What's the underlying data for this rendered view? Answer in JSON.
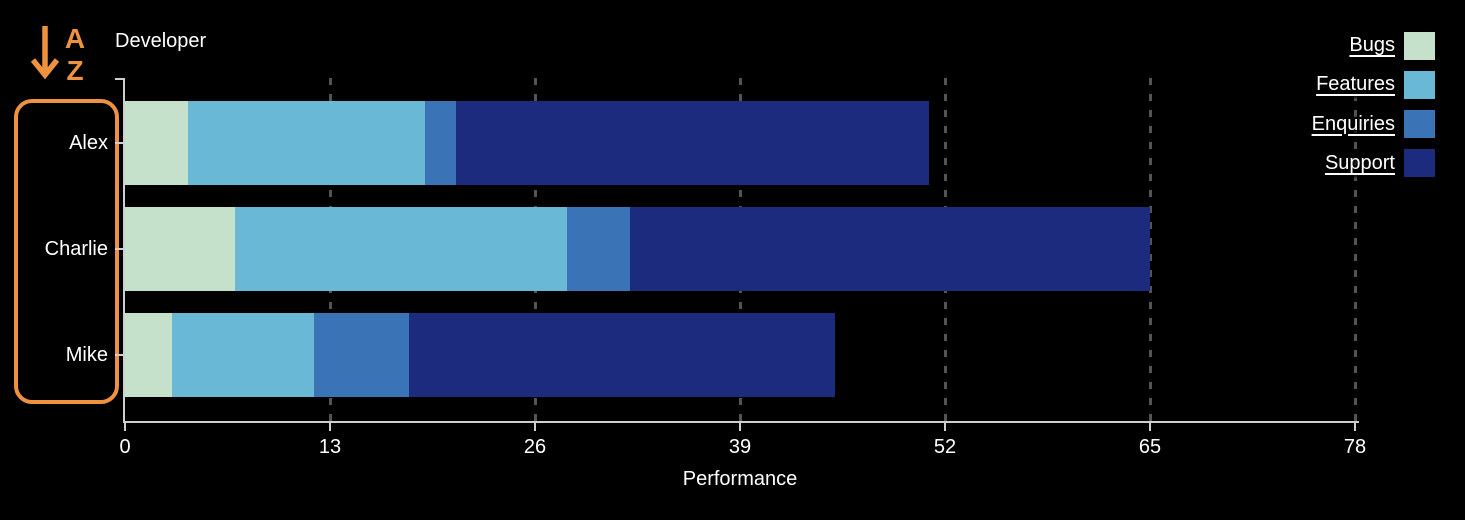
{
  "axes": {
    "y_title": "Developer",
    "x_title": "Performance"
  },
  "sort_control": {
    "top_letter": "A",
    "bottom_letter": "Z",
    "direction": "ascending"
  },
  "legend": {
    "position": "top-right",
    "items": [
      {
        "label": "Bugs",
        "color": "#c5e1cb"
      },
      {
        "label": "Features",
        "color": "#69b8d6"
      },
      {
        "label": "Enquiries",
        "color": "#3a74b6"
      },
      {
        "label": "Support",
        "color": "#1d2b7e"
      }
    ]
  },
  "chart_data": {
    "type": "bar",
    "orientation": "horizontal",
    "stacked": true,
    "title": "",
    "xlabel": "Performance",
    "ylabel": "Developer",
    "categories": [
      "Alex",
      "Charlie",
      "Mike"
    ],
    "series": [
      {
        "name": "Bugs",
        "color": "#c5e1cb",
        "values": [
          4,
          7,
          3
        ]
      },
      {
        "name": "Features",
        "color": "#69b8d6",
        "values": [
          15,
          21,
          9
        ]
      },
      {
        "name": "Enquiries",
        "color": "#3a74b6",
        "values": [
          2,
          4,
          6
        ]
      },
      {
        "name": "Support",
        "color": "#1d2b7e",
        "values": [
          30,
          33,
          27
        ]
      }
    ],
    "totals": [
      51,
      65,
      45
    ],
    "xlim": [
      0,
      78
    ],
    "x_ticks": [
      0,
      13,
      26,
      39,
      52,
      65,
      78
    ],
    "x_tick_interval": 13,
    "grid": "vertical-dashed",
    "legend_position": "top-right",
    "background": "#000000"
  },
  "colors": {
    "accent_orange": "#ee9240",
    "gridline": "#545454",
    "axis_line": "#cfcfcf",
    "text": "#ffffff",
    "background": "#000000"
  }
}
